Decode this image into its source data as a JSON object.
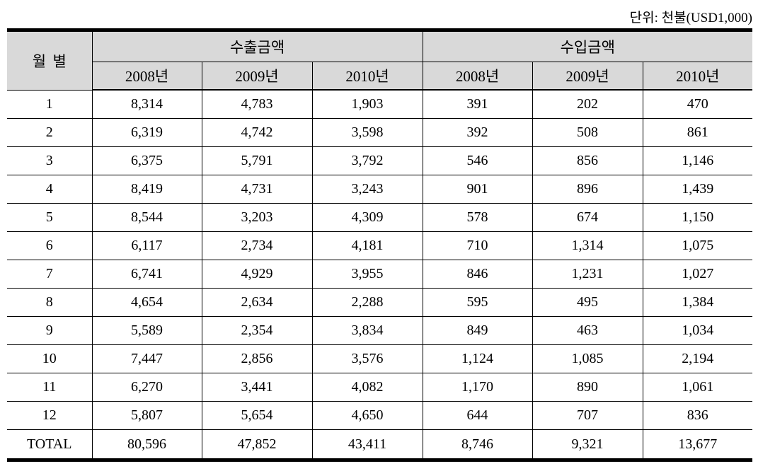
{
  "unit_label": "단위: 천불(USD1,000)",
  "table": {
    "month_header": "월별",
    "groups": [
      {
        "label": "수출금액"
      },
      {
        "label": "수입금액"
      }
    ],
    "year_headers": [
      "2008년",
      "2009년",
      "2010년",
      "2008년",
      "2009년",
      "2010년"
    ],
    "rows": [
      {
        "month": "1",
        "values": [
          "8,314",
          "4,783",
          "1,903",
          "391",
          "202",
          "470"
        ]
      },
      {
        "month": "2",
        "values": [
          "6,319",
          "4,742",
          "3,598",
          "392",
          "508",
          "861"
        ]
      },
      {
        "month": "3",
        "values": [
          "6,375",
          "5,791",
          "3,792",
          "546",
          "856",
          "1,146"
        ]
      },
      {
        "month": "4",
        "values": [
          "8,419",
          "4,731",
          "3,243",
          "901",
          "896",
          "1,439"
        ]
      },
      {
        "month": "5",
        "values": [
          "8,544",
          "3,203",
          "4,309",
          "578",
          "674",
          "1,150"
        ]
      },
      {
        "month": "6",
        "values": [
          "6,117",
          "2,734",
          "4,181",
          "710",
          "1,314",
          "1,075"
        ]
      },
      {
        "month": "7",
        "values": [
          "6,741",
          "4,929",
          "3,955",
          "846",
          "1,231",
          "1,027"
        ]
      },
      {
        "month": "8",
        "values": [
          "4,654",
          "2,634",
          "2,288",
          "595",
          "495",
          "1,384"
        ]
      },
      {
        "month": "9",
        "values": [
          "5,589",
          "2,354",
          "3,834",
          "849",
          "463",
          "1,034"
        ]
      },
      {
        "month": "10",
        "values": [
          "7,447",
          "2,856",
          "3,576",
          "1,124",
          "1,085",
          "2,194"
        ]
      },
      {
        "month": "11",
        "values": [
          "6,270",
          "3,441",
          "4,082",
          "1,170",
          "890",
          "1,061"
        ]
      },
      {
        "month": "12",
        "values": [
          "5,807",
          "5,654",
          "4,650",
          "644",
          "707",
          "836"
        ]
      },
      {
        "month": "TOTAL",
        "values": [
          "80,596",
          "47,852",
          "43,411",
          "8,746",
          "9,321",
          "13,677"
        ]
      }
    ]
  }
}
